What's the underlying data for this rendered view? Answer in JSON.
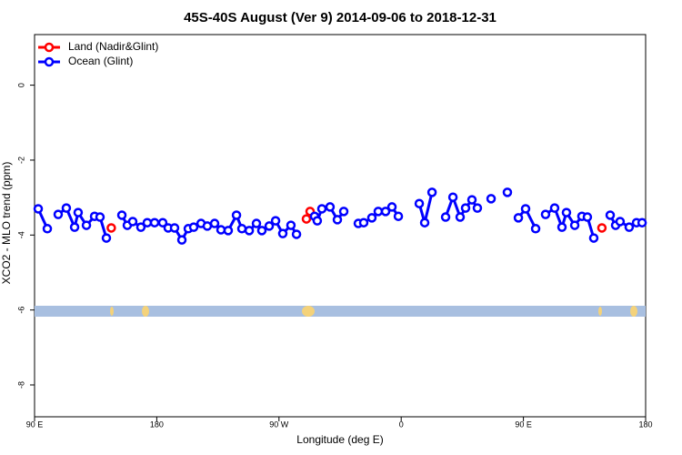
{
  "chart_data": {
    "type": "line",
    "title": "45S-40S August (Ver 9)   2014-09-06 to 2018-12-31",
    "x_label": "Longitude (deg E)",
    "y_label": "XCO2 - MLO trend (ppm)",
    "xlim": [
      90,
      540
    ],
    "xticks": [
      {
        "value": 90,
        "label": "90 E"
      },
      180,
      {
        "value": 270,
        "label": "90 W"
      },
      {
        "value": 360,
        "label": "0"
      },
      {
        "value": 450,
        "label": "90 E"
      },
      {
        "value": 540,
        "label": "180"
      }
    ],
    "ylim": [
      -8.85,
      1.35
    ],
    "yticks": [
      0,
      -2,
      -4,
      -6,
      -8
    ],
    "legend": "top-left",
    "series": [
      {
        "name": "Land (Nadir&Glint)",
        "color": "#ff0000",
        "x": [
          146.5,
          null,
          290.2,
          292.9,
          null,
          507.8
        ],
        "values": [
          -3.81,
          null,
          -3.57,
          -3.37,
          null,
          -3.81
        ]
      },
      {
        "name": "Ocean (Glint)",
        "color": "#0000ff",
        "x": [
          92.7,
          99.4,
          null,
          107.4,
          113.4,
          119.5,
          122.1,
          128.2,
          134.2,
          138.2,
          142.9,
          null,
          154.3,
          158.3,
          162.3,
          168.3,
          173.0,
          178.4,
          184.4,
          188.4,
          193.1,
          198.5,
          203.2,
          207.2,
          212.6,
          217.2,
          222.6,
          227.3,
          232.6,
          238.7,
          242.7,
          248.1,
          253.4,
          257.4,
          262.8,
          267.5,
          272.8,
          278.8,
          282.9,
          null,
          296.2,
          298.2,
          301.6,
          307.6,
          313.0,
          317.7,
          null,
          328.4,
          332.4,
          338.4,
          343.1,
          348.5,
          353.2,
          357.9,
          null,
          373.3,
          377.3,
          382.7,
          null,
          392.7,
          398.1,
          403.4,
          407.4,
          412.1,
          416.1,
          null,
          426.2,
          null,
          438.2,
          null,
          446.3,
          451.6,
          459.0,
          null,
          466.3,
          473.0,
          478.4,
          481.7,
          487.8,
          493.1,
          497.1,
          501.8,
          null,
          513.9,
          517.9,
          521.2,
          527.9,
          533.3,
          537.4
        ],
        "values": [
          -3.3,
          -3.83,
          null,
          -3.45,
          -3.28,
          -3.79,
          -3.4,
          -3.74,
          -3.5,
          -3.52,
          -4.08,
          null,
          -3.47,
          -3.74,
          -3.64,
          -3.79,
          -3.67,
          -3.67,
          -3.67,
          -3.81,
          -3.81,
          -4.13,
          -3.83,
          -3.79,
          -3.69,
          -3.76,
          -3.69,
          -3.86,
          -3.88,
          -3.47,
          -3.83,
          -3.88,
          -3.69,
          -3.88,
          -3.76,
          -3.62,
          -3.96,
          -3.74,
          -3.98,
          null,
          -3.5,
          -3.62,
          -3.3,
          -3.25,
          -3.59,
          -3.37,
          null,
          -3.69,
          -3.67,
          -3.54,
          -3.37,
          -3.37,
          -3.25,
          -3.5,
          null,
          -3.16,
          -3.67,
          -2.86,
          null,
          -3.52,
          -2.99,
          -3.52,
          -3.28,
          -3.06,
          -3.28,
          null,
          -3.03,
          null,
          -2.86,
          null,
          -3.54,
          -3.3,
          -3.83,
          null,
          -3.45,
          -3.28,
          -3.79,
          -3.4,
          -3.74,
          -3.5,
          -3.52,
          -4.08,
          null,
          -3.47,
          -3.74,
          -3.64,
          -3.79,
          -3.67,
          -3.67
        ]
      }
    ]
  }
}
